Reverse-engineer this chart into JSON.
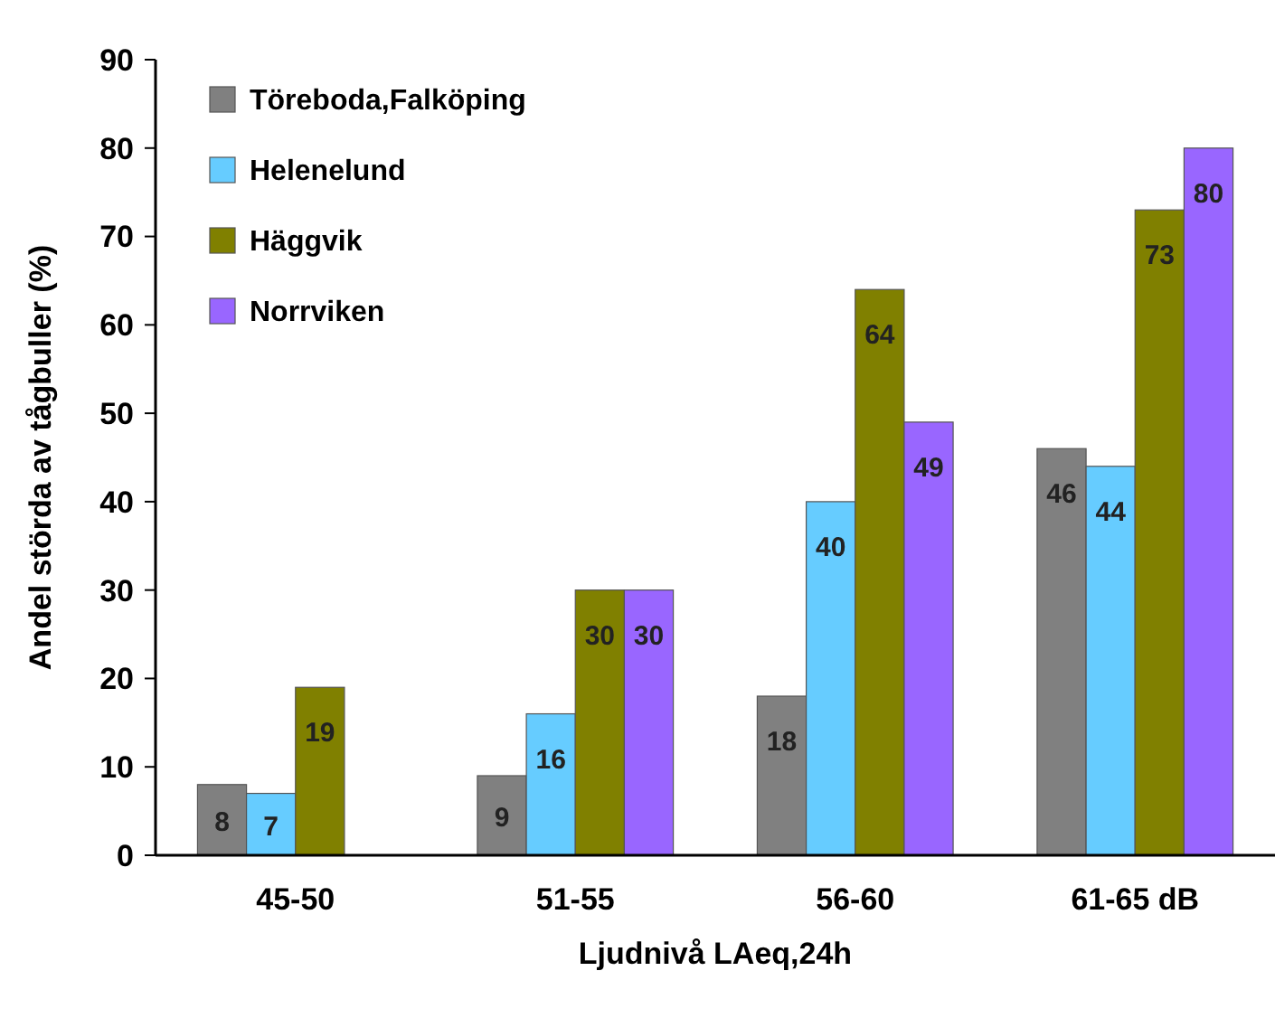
{
  "chart_data": {
    "type": "bar",
    "xlabel": "Ljudnivå LAeq,24h",
    "ylabel": "Andel störda av tågbuller (%)",
    "categories": [
      "45-50",
      "51-55",
      "56-60",
      "61-65 dB"
    ],
    "series": [
      {
        "name": "Töreboda,Falköping",
        "color": "#808080",
        "values": [
          8,
          9,
          18,
          46
        ]
      },
      {
        "name": "Helenelund",
        "color": "#66ccff",
        "values": [
          7,
          16,
          40,
          44
        ]
      },
      {
        "name": "Häggvik",
        "color": "#808000",
        "values": [
          19,
          30,
          64,
          73
        ]
      },
      {
        "name": "Norrviken",
        "color": "#9966ff",
        "values": [
          null,
          30,
          49,
          80
        ]
      }
    ],
    "ylim": [
      0,
      90
    ],
    "yticks": [
      0,
      10,
      20,
      30,
      40,
      50,
      60,
      70,
      80,
      90
    ],
    "data_labels": true,
    "legend": "top left",
    "grid": false
  }
}
